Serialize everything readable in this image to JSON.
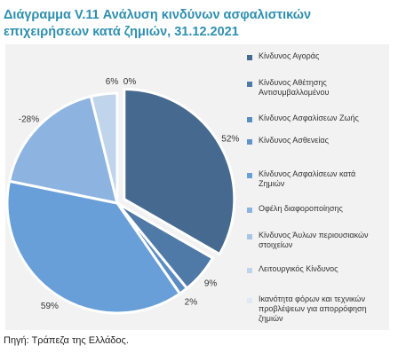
{
  "title": "Διάγραμμα V.11 Ανάλυση κινδύνων ασφαλιστικών επιχειρήσεων κατά ζημιών, 31.12.2021",
  "source": "Πηγή: Τράπεζα της Ελλάδος.",
  "chart_data": {
    "type": "pie",
    "title": "Διάγραμμα V.11 Ανάλυση κινδύνων ασφαλιστικών επιχειρήσεων κατά ζημιών, 31.12.2021",
    "legend_position": "right",
    "series": [
      {
        "name": "",
        "slices": [
          {
            "label": "Κίνδυνος Αγοράς",
            "value": 52,
            "display": "52%",
            "color": "#45698f",
            "explode": true
          },
          {
            "label": "Κίνδυνος Αθέτησης Αντισυμβαλλομένου",
            "value": 9,
            "display": "9%",
            "color": "#4f79a6",
            "explode": false
          },
          {
            "label": "Κίνδυνος Ασφαλίσεων Ζωής",
            "value": 2,
            "display": "2%",
            "color": "#5b8cc2",
            "explode": false
          },
          {
            "label": "Κίνδυνος Ασθενείας",
            "value": 0,
            "display": "",
            "color": "#5f93cc",
            "explode": false
          },
          {
            "label": "Κίνδυνος Ασφαλίσεων κατά Ζημιών",
            "value": 59,
            "display": "59%",
            "color": "#689fd8",
            "explode": false
          },
          {
            "label": "Οφέλη διαφοροποίησης",
            "value": -28,
            "display": "-28%",
            "color": "#8db4e0",
            "explode": false
          },
          {
            "label": "Κίνδυνος Άυλων περιουσιακών στοιχείων",
            "value": 0,
            "display": "",
            "color": "#a9c5e6",
            "explode": false
          },
          {
            "label": "Λειτουργικός Κίνδυνος",
            "value": 6,
            "display": "6%",
            "color": "#c0d5ec",
            "explode": false
          },
          {
            "label": "Ικανότητα φόρων και τεχνικών προβλέψεων για απορρόφηση ζημιών",
            "value": 0,
            "display": "0%",
            "color": "#dfe9f5",
            "explode": false
          }
        ]
      }
    ]
  }
}
